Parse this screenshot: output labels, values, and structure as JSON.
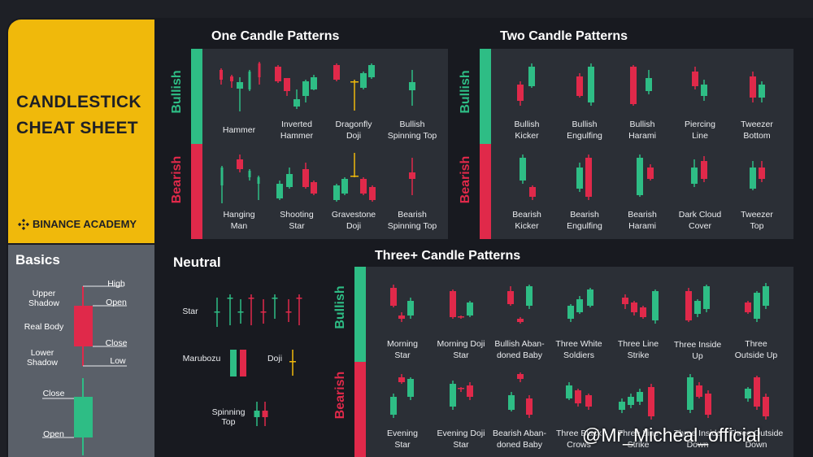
{
  "header": {
    "title_line1": "CANDLESTICK",
    "title_line2": "CHEAT SHEET",
    "brand": "BINANCE ACADEMY"
  },
  "basics": {
    "title": "Basics",
    "labels": {
      "upper_shadow": "Upper\nShadow",
      "real_body": "Real Body",
      "lower_shadow": "Lower\nShadow",
      "high": "High",
      "open": "Open",
      "close": "Close",
      "low": "Low",
      "close2": "Close",
      "open2": "Open"
    }
  },
  "sections": {
    "one_candle": "One Candle Patterns",
    "two_candle": "Two Candle Patterns",
    "neutral": "Neutral",
    "three_candle": "Three+ Candle Patterns",
    "bullish": "Bullish",
    "bearish": "Bearish"
  },
  "one_candle": {
    "bullish": [
      "Hammer",
      "Inverted\nHammer",
      "Dragonfly\nDoji",
      "Bullish\nSpinning Top"
    ],
    "bearish": [
      "Hanging\nMan",
      "Shooting\nStar",
      "Gravestone\nDoji",
      "Bearish\nSpinning Top"
    ]
  },
  "two_candle": {
    "bullish": [
      "Bullish\nKicker",
      "Bullish\nEngulfing",
      "Bullish\nHarami",
      "Piercing\nLine",
      "Tweezer\nBottom"
    ],
    "bearish": [
      "Bearish\nKicker",
      "Bearish\nEngulfing",
      "Bearish\nHarami",
      "Dark Cloud\nCover",
      "Tweezer\nTop"
    ]
  },
  "neutral": {
    "star": "Star",
    "marubozu": "Marubozu",
    "doji": "Doji",
    "spinning_top": "Spinning\nTop"
  },
  "three_candle": {
    "bullish": [
      "Morning\nStar",
      "Morning Doji\nStar",
      "Bullish Aban-\ndoned Baby",
      "Three White\nSoldiers",
      "Three Line\nStrike",
      "Three Inside\nUp",
      "Three\nOutside Up"
    ],
    "bearish": [
      "Evening\nStar",
      "Evening Doji\nStar",
      "Bearish Aban-\ndoned Baby",
      "Three Black\nCrows",
      "Three Line\nStrike",
      "Three Inside\nDown",
      "Three Outside\nDown"
    ]
  },
  "watermark": "@Mr_Micheal_official",
  "colors": {
    "green": "#2ebd85",
    "red": "#e0294a",
    "yellow": "#f0b90b",
    "panel": "#2b2f36",
    "bg": "#181a20"
  }
}
